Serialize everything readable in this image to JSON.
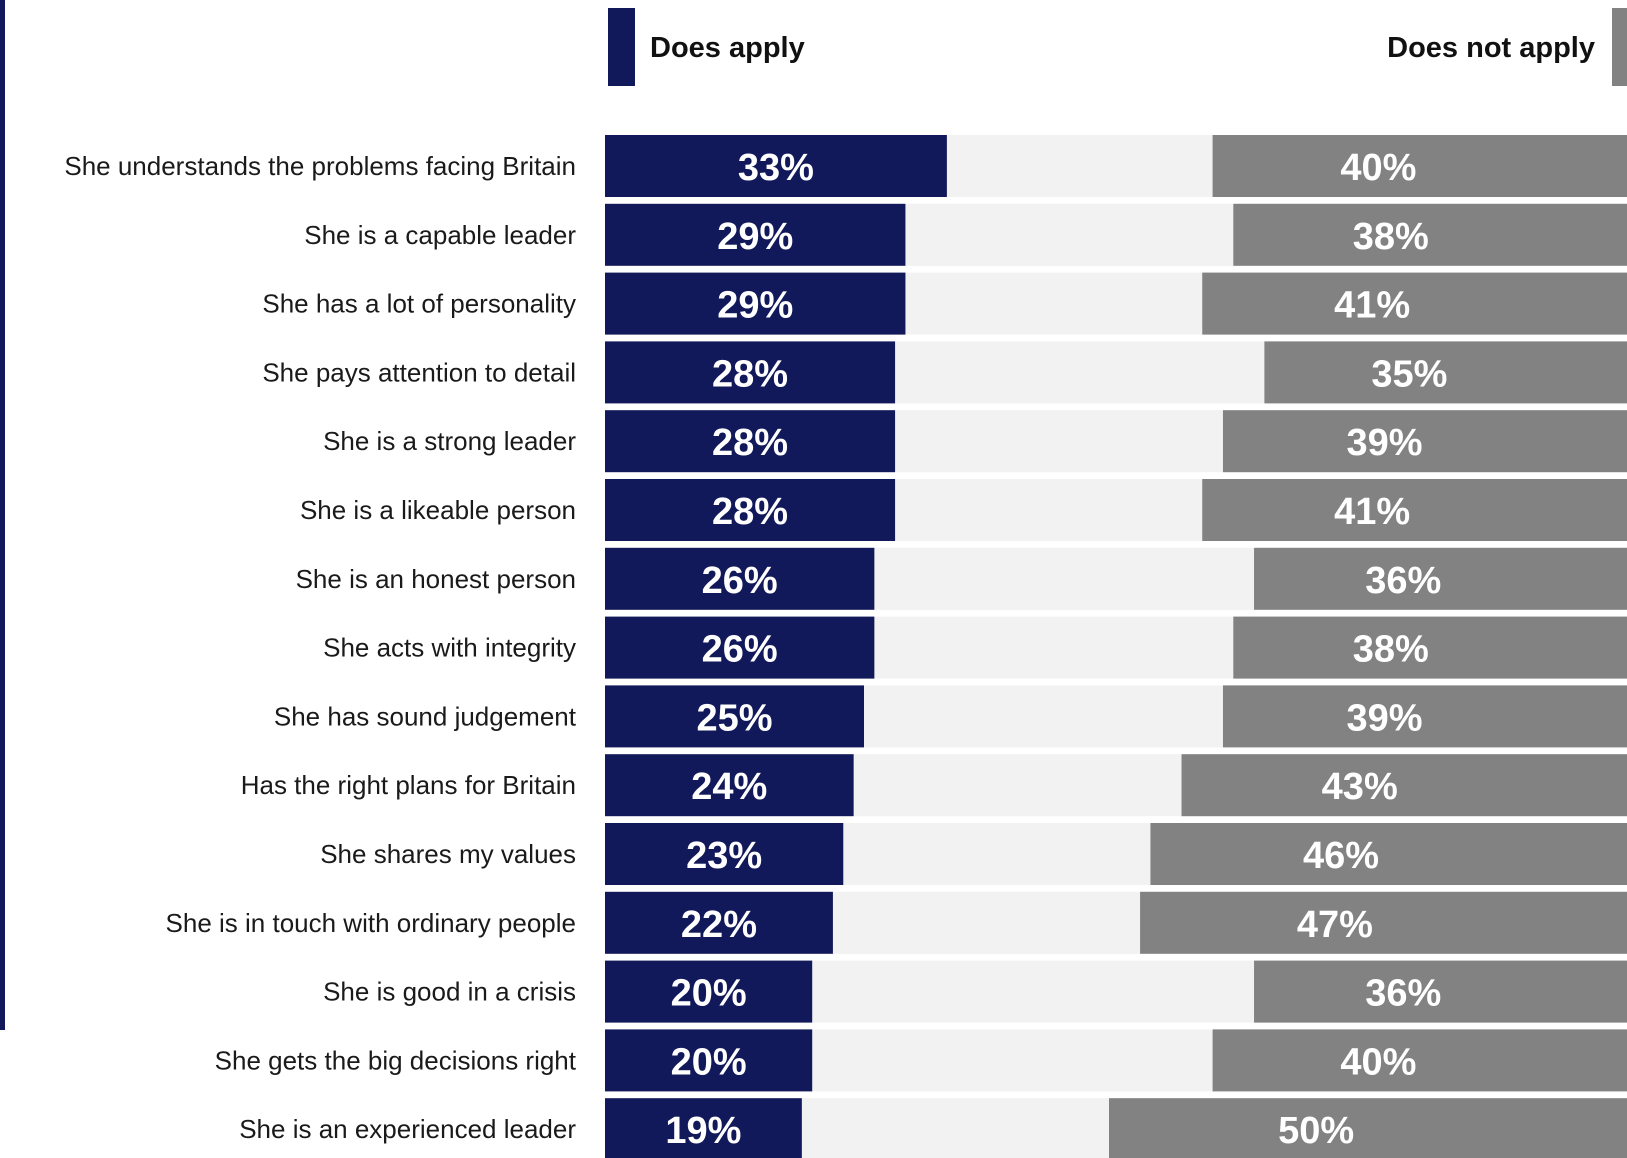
{
  "legend": {
    "apply_label": "Does apply",
    "not_apply_label": "Does not apply"
  },
  "colors": {
    "apply": "#12195a",
    "not_apply": "#828282",
    "neutral": "#f2f2f2",
    "left_rule": "#12195a"
  },
  "chart_data": {
    "type": "bar",
    "orientation": "horizontal-diverging",
    "categories": [
      "She understands the problems facing Britain",
      "She is a capable leader",
      "She has a lot of personality",
      "She pays attention to detail",
      "She is a strong leader",
      "She is a likeable person",
      "She is an honest person",
      "She acts with integrity",
      "She has sound judgement",
      "Has the right plans for Britain",
      "She shares my values",
      "She is in touch with ordinary people",
      "She is good in a crisis",
      "She gets the big decisions right",
      "She is an experienced leader"
    ],
    "series": [
      {
        "name": "Does apply",
        "values": [
          33,
          29,
          29,
          28,
          28,
          28,
          26,
          26,
          25,
          24,
          23,
          22,
          20,
          20,
          19
        ]
      },
      {
        "name": "Does not apply",
        "values": [
          40,
          38,
          41,
          35,
          39,
          41,
          36,
          38,
          39,
          43,
          46,
          47,
          36,
          40,
          50
        ]
      }
    ],
    "unit": "%",
    "legend_position": "top",
    "grid": false
  }
}
